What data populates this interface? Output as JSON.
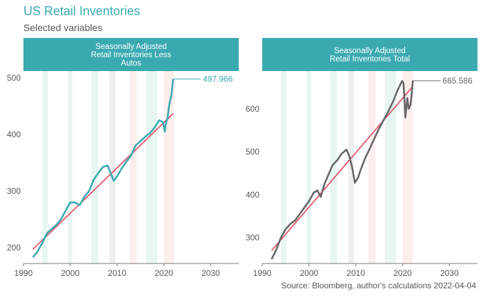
{
  "title": "US Retail Inventories",
  "subtitle": "Selected variables",
  "source": "Source: Bloomberg, author's calculations 2022-04-04",
  "colors": {
    "strip": "#3aaab0",
    "series_left": "#3aaab0",
    "series_right": "#666666",
    "trend": "#e0566a",
    "axis_text": "#555555"
  },
  "chart_data": [
    {
      "type": "line",
      "strip": [
        "Seasonally Adjusted",
        "Retail Inventories Less",
        "Autos"
      ],
      "last_label": "497.966",
      "last_value": 497.966,
      "xlim": [
        1990,
        2036
      ],
      "ylim": [
        172,
        512
      ],
      "xticks": [
        1990,
        2000,
        2010,
        2020,
        2030
      ],
      "yticks": [
        200,
        300,
        400,
        500
      ],
      "series_color": "#3aaab0",
      "x": [
        1992.0,
        1993.0,
        1994.0,
        1995.0,
        1996.0,
        1997.0,
        1998.0,
        1999.0,
        2000.0,
        2001.0,
        2002.0,
        2003.0,
        2004.0,
        2005.0,
        2006.0,
        2007.0,
        2008.0,
        2008.7,
        2009.3,
        2010.0,
        2011.0,
        2012.0,
        2013.0,
        2014.0,
        2015.0,
        2016.0,
        2017.0,
        2018.0,
        2019.0,
        2019.8,
        2020.2,
        2020.4,
        2020.8,
        2021.2,
        2021.6,
        2022.0
      ],
      "y": [
        183,
        193,
        208,
        225,
        233,
        240,
        250,
        265,
        280,
        280,
        275,
        290,
        300,
        320,
        332,
        343,
        345,
        330,
        318,
        326,
        340,
        352,
        363,
        381,
        388,
        396,
        402,
        412,
        425,
        422,
        405,
        418,
        430,
        455,
        468,
        498
      ],
      "trend": {
        "x": [
          1992,
          2022
        ],
        "y": [
          197,
          437
        ]
      },
      "shading": [
        {
          "from": 1994.0,
          "to": 1995.2,
          "color": "#e8f6f2"
        },
        {
          "from": 1999.5,
          "to": 2000.4,
          "color": "#e8f6f2"
        },
        {
          "from": 2004.5,
          "to": 2006.0,
          "color": "#e8f6f2"
        },
        {
          "from": 2008.4,
          "to": 2009.6,
          "color": "#eeeeee"
        },
        {
          "from": 2012.7,
          "to": 2014.2,
          "color": "#fdeeee"
        },
        {
          "from": 2016.2,
          "to": 2018.6,
          "color": "#e8f6f2"
        },
        {
          "from": 2020.0,
          "to": 2022.2,
          "color": "#fdeeee"
        }
      ]
    },
    {
      "type": "line",
      "strip": [
        "Seasonally Adjusted",
        "Retail Inventories Total"
      ],
      "last_label": "665.586",
      "last_value": 665.586,
      "xlim": [
        1990,
        2036
      ],
      "ylim": [
        240,
        688
      ],
      "xticks": [
        1990,
        2000,
        2010,
        2020,
        2030
      ],
      "yticks": [
        300,
        400,
        500,
        600
      ],
      "series_color": "#666666",
      "x": [
        1992.0,
        1993.0,
        1994.0,
        1995.0,
        1996.0,
        1997.0,
        1998.0,
        1999.0,
        2000.0,
        2001.0,
        2001.8,
        2002.5,
        2003.3,
        2004.2,
        2005.0,
        2006.0,
        2007.0,
        2008.0,
        2008.6,
        2009.2,
        2009.8,
        2010.5,
        2011.0,
        2012.0,
        2013.0,
        2014.0,
        2015.0,
        2016.0,
        2017.0,
        2018.0,
        2019.0,
        2019.9,
        2020.2,
        2020.6,
        2021.0,
        2021.3,
        2021.7,
        2022.0,
        2022.2
      ],
      "y": [
        250,
        272,
        300,
        320,
        332,
        340,
        355,
        370,
        385,
        405,
        410,
        395,
        425,
        448,
        468,
        480,
        496,
        505,
        490,
        465,
        428,
        440,
        457,
        485,
        508,
        532,
        555,
        575,
        595,
        618,
        645,
        665,
        660,
        580,
        625,
        600,
        610,
        640,
        666
      ],
      "trend": {
        "x": [
          1992,
          2022
        ],
        "y": [
          270,
          650
        ]
      },
      "shading": [
        {
          "from": 1994.0,
          "to": 1995.2,
          "color": "#e8f6f2"
        },
        {
          "from": 1999.5,
          "to": 2000.4,
          "color": "#e8f6f2"
        },
        {
          "from": 2004.5,
          "to": 2006.0,
          "color": "#e8f6f2"
        },
        {
          "from": 2008.4,
          "to": 2009.6,
          "color": "#eeeeee"
        },
        {
          "from": 2012.7,
          "to": 2014.2,
          "color": "#fdeeee"
        },
        {
          "from": 2016.2,
          "to": 2018.6,
          "color": "#e8f6f2"
        },
        {
          "from": 2020.0,
          "to": 2022.2,
          "color": "#fdeeee"
        }
      ]
    }
  ]
}
